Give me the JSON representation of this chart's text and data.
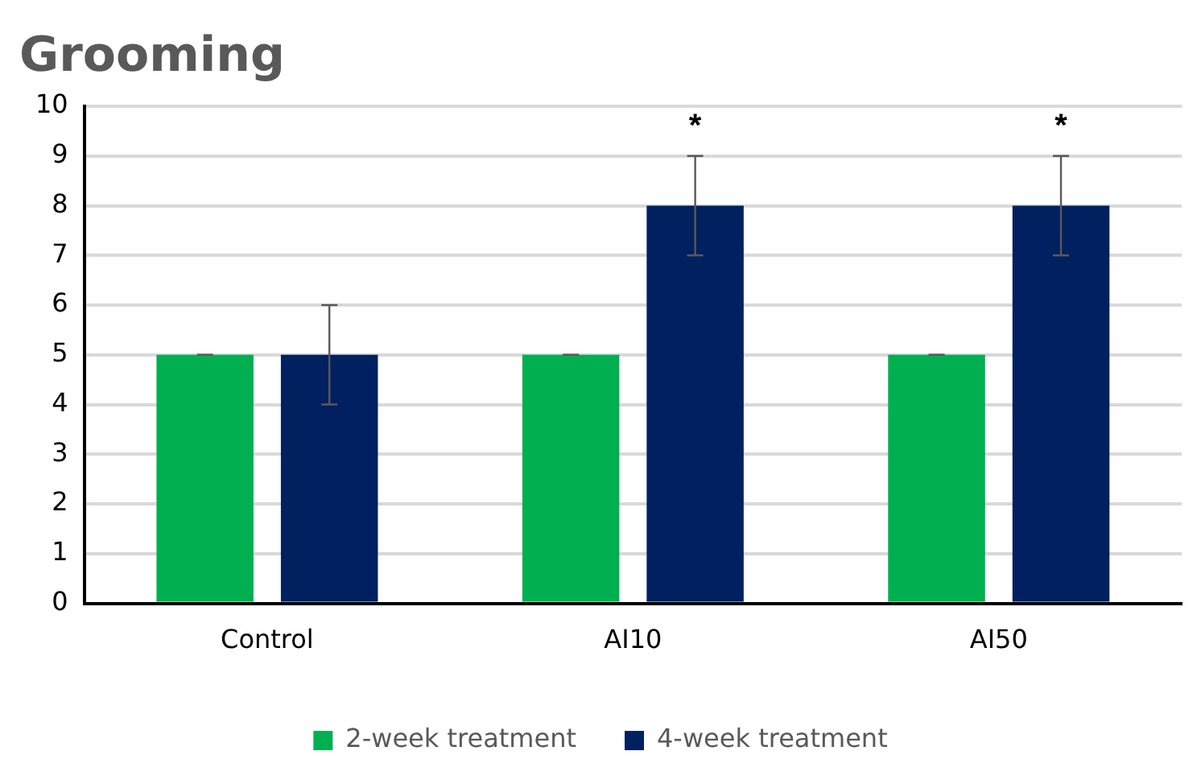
{
  "chart_data": {
    "type": "bar",
    "title": "Grooming",
    "categories": [
      "Control",
      "AI10",
      "AI50"
    ],
    "series": [
      {
        "name": "2-week treatment",
        "color": "#00b050",
        "values": [
          5,
          5,
          5
        ],
        "errors": [
          0,
          0,
          0
        ]
      },
      {
        "name": "4-week treatment",
        "color": "#002060",
        "values": [
          5,
          8,
          8
        ],
        "errors": [
          1,
          1,
          1
        ]
      }
    ],
    "ylim": [
      0,
      10
    ],
    "yticks": [
      0,
      1,
      2,
      3,
      4,
      5,
      6,
      7,
      8,
      9,
      10
    ],
    "grid": "y",
    "legend": "bottom",
    "annotations": [
      "*",
      "*"
    ]
  }
}
